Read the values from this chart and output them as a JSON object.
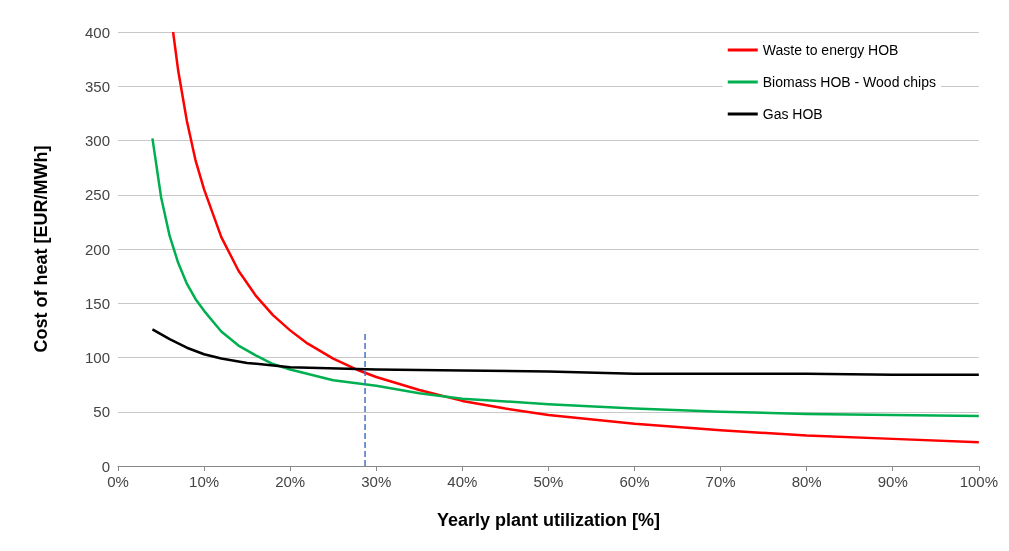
{
  "chart_data": {
    "type": "line",
    "xlabel": "Yearly plant utilization [%]",
    "ylabel": "Cost of heat [EUR/MWh]",
    "xlim": [
      0,
      100
    ],
    "xticks": [
      {
        "value": 0,
        "label": "0%"
      },
      {
        "value": 10,
        "label": "10%"
      },
      {
        "value": 20,
        "label": "20%"
      },
      {
        "value": 30,
        "label": "30%"
      },
      {
        "value": 40,
        "label": "40%"
      },
      {
        "value": 50,
        "label": "50%"
      },
      {
        "value": 60,
        "label": "60%"
      },
      {
        "value": 70,
        "label": "70%"
      },
      {
        "value": 80,
        "label": "80%"
      },
      {
        "value": 90,
        "label": "90%"
      },
      {
        "value": 100,
        "label": "100%"
      }
    ],
    "ylim": [
      0,
      400
    ],
    "yticks": [
      0,
      50,
      100,
      150,
      200,
      250,
      300,
      350,
      400
    ],
    "grid": "y",
    "legend": "top right",
    "marker": "none",
    "line_style": "solid",
    "series": [
      {
        "name": "Waste to energy HOB",
        "color": "#ff0000",
        "x": [
          6.4,
          7,
          8,
          9,
          10,
          12,
          14,
          16,
          18,
          20,
          22,
          25,
          28,
          30,
          35,
          40,
          45,
          50,
          60,
          70,
          80,
          90,
          100
        ],
        "values": [
          400,
          364,
          318,
          282,
          255,
          211,
          180,
          157,
          139,
          125,
          113,
          99,
          88,
          82,
          70,
          60,
          53,
          47,
          39,
          33,
          28,
          25,
          22
        ]
      },
      {
        "name": "Biomass HOB - Wood chips",
        "color": "#00b050",
        "x": [
          4,
          5,
          6,
          7,
          8,
          9,
          10,
          12,
          14,
          16,
          18,
          20,
          25,
          30,
          35,
          40,
          50,
          60,
          70,
          80,
          90,
          100
        ],
        "values": [
          302,
          248,
          212,
          187,
          168,
          154,
          143,
          124,
          111,
          102,
          94,
          89,
          79,
          74,
          67,
          62,
          57,
          53,
          50,
          48,
          47,
          46
        ]
      },
      {
        "name": "Gas HOB",
        "color": "#000000",
        "x": [
          4,
          6,
          8,
          10,
          12,
          15,
          20,
          30,
          40,
          50,
          60,
          70,
          80,
          90,
          100
        ],
        "values": [
          126,
          117,
          109,
          103,
          99,
          95,
          91,
          89,
          88,
          87,
          85,
          85,
          85,
          84,
          84
        ]
      },
      {
        "type": "line",
        "color": "#4472c4",
        "line_style": "dashed",
        "x": [
          28.7,
          28.7
        ],
        "values": [
          0,
          123
        ]
      }
    ]
  }
}
